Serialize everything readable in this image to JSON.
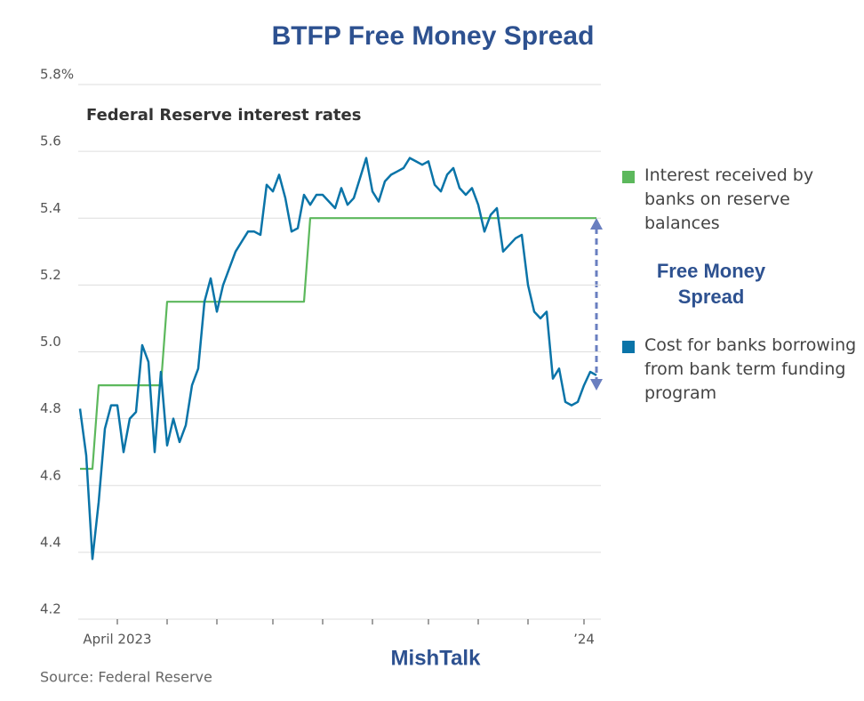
{
  "chart_data": {
    "type": "line",
    "title": "BTFP Free Money Spread",
    "subtitle": "Federal Reserve interest rates",
    "annotation": "Free Money Spread",
    "watermark": "MishTalk",
    "source": "Source: Federal Reserve",
    "categories": [
      null,
      null,
      null,
      null,
      null,
      null,
      "April 2023",
      null,
      null,
      null,
      null,
      null,
      null,
      null,
      null,
      null,
      null,
      null,
      null,
      null,
      null,
      null,
      null,
      null,
      null,
      null,
      null,
      null,
      null,
      null,
      null,
      null,
      null,
      null,
      null,
      null,
      null,
      null,
      null,
      null,
      null,
      null,
      null,
      null,
      null,
      null,
      null,
      null,
      null,
      null,
      null,
      null,
      null,
      null,
      null,
      null,
      null,
      null,
      null,
      null,
      null,
      null,
      null,
      null,
      null,
      null,
      null,
      null,
      null,
      null,
      null,
      null,
      null,
      null,
      null,
      null,
      null,
      null,
      null,
      null,
      null,
      "’24",
      null,
      null
    ],
    "xticks": [
      6,
      14,
      22,
      31,
      39,
      47,
      56,
      64,
      72,
      81
    ],
    "series": [
      {
        "name": "Interest received by banks on reserve balances",
        "color": "#5cb85c",
        "values": [
          4.65,
          4.65,
          4.65,
          4.9,
          4.9,
          4.9,
          4.9,
          4.9,
          4.9,
          4.9,
          4.9,
          4.9,
          4.9,
          4.9,
          5.15,
          5.15,
          5.15,
          5.15,
          5.15,
          5.15,
          5.15,
          5.15,
          5.15,
          5.15,
          5.15,
          5.15,
          5.15,
          5.15,
          5.15,
          5.15,
          5.15,
          5.15,
          5.15,
          5.15,
          5.15,
          5.15,
          5.15,
          5.4,
          5.4,
          5.4,
          5.4,
          5.4,
          5.4,
          5.4,
          5.4,
          5.4,
          5.4,
          5.4,
          5.4,
          5.4,
          5.4,
          5.4,
          5.4,
          5.4,
          5.4,
          5.4,
          5.4,
          5.4,
          5.4,
          5.4,
          5.4,
          5.4,
          5.4,
          5.4,
          5.4,
          5.4,
          5.4,
          5.4,
          5.4,
          5.4,
          5.4,
          5.4,
          5.4,
          5.4,
          5.4,
          5.4,
          5.4,
          5.4,
          5.4,
          5.4,
          5.4,
          5.4,
          5.4,
          5.4
        ]
      },
      {
        "name": "Cost for banks borrowing from bank term funding program",
        "color": "#0a74a8",
        "values": [
          4.83,
          4.69,
          4.38,
          4.55,
          4.77,
          4.84,
          4.84,
          4.7,
          4.8,
          4.82,
          5.02,
          4.97,
          4.7,
          4.94,
          4.72,
          4.8,
          4.73,
          4.78,
          4.9,
          4.95,
          5.15,
          5.22,
          5.12,
          5.2,
          5.25,
          5.3,
          5.33,
          5.36,
          5.36,
          5.35,
          5.5,
          5.48,
          5.53,
          5.46,
          5.36,
          5.37,
          5.47,
          5.44,
          5.47,
          5.47,
          5.45,
          5.43,
          5.49,
          5.44,
          5.46,
          5.52,
          5.58,
          5.48,
          5.45,
          5.51,
          5.53,
          5.54,
          5.55,
          5.58,
          5.57,
          5.56,
          5.57,
          5.5,
          5.48,
          5.53,
          5.55,
          5.49,
          5.47,
          5.49,
          5.44,
          5.36,
          5.41,
          5.43,
          5.3,
          5.32,
          5.34,
          5.35,
          5.2,
          5.12,
          5.1,
          5.12,
          4.92,
          4.95,
          4.85,
          4.84,
          4.85,
          4.9,
          4.94,
          4.93
        ]
      }
    ],
    "ylim": [
      4.2,
      5.8
    ],
    "yticks": [
      {
        "value": 4.2,
        "label": "4.2"
      },
      {
        "value": 4.4,
        "label": "4.4"
      },
      {
        "value": 4.6,
        "label": "4.6"
      },
      {
        "value": 4.8,
        "label": "4.8"
      },
      {
        "value": 5.0,
        "label": "5.0"
      },
      {
        "value": 5.2,
        "label": "5.2"
      },
      {
        "value": 5.4,
        "label": "5.4"
      },
      {
        "value": 5.6,
        "label": "5.6"
      },
      {
        "value": 5.8,
        "label": "5.8%"
      }
    ],
    "grid": true
  }
}
